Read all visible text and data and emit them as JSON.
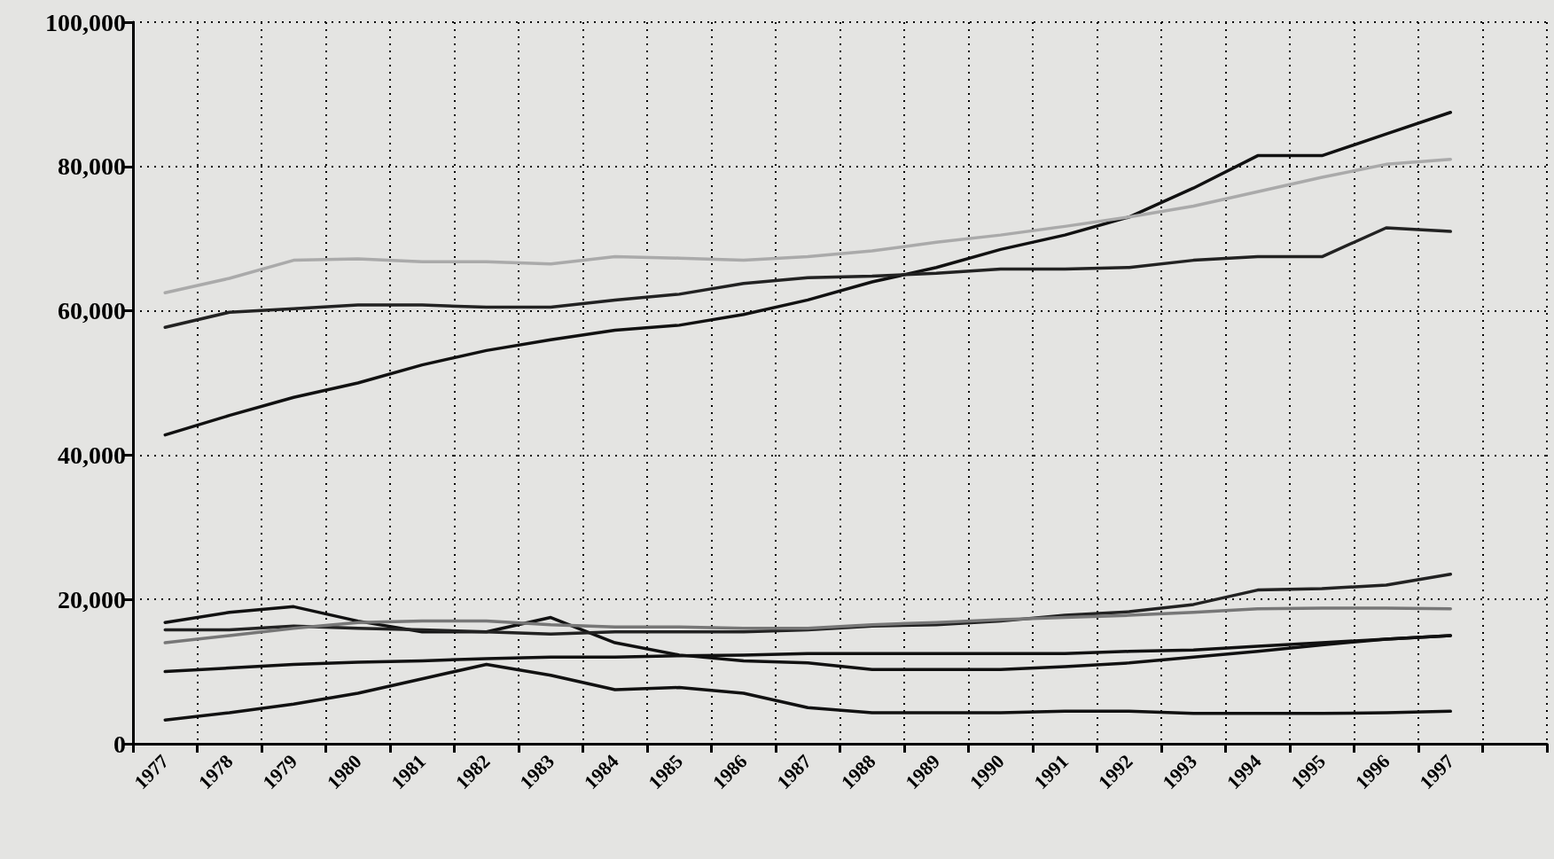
{
  "chart_data": {
    "type": "line",
    "categories": [
      "1977",
      "1978",
      "1979",
      "1980",
      "1981",
      "1982",
      "1983",
      "1984",
      "1985",
      "1986",
      "1987",
      "1988",
      "1989",
      "1990",
      "1991",
      "1992",
      "1993",
      "1994",
      "1995",
      "1996",
      "1997",
      null
    ],
    "series": [
      {
        "color": "#111111",
        "values": [
          42800,
          45500,
          48000,
          50000,
          52500,
          54500,
          56000,
          57300,
          58000,
          59500,
          61500,
          64000,
          66000,
          68500,
          70500,
          73000,
          77000,
          81500,
          81500,
          84500,
          87500,
          null
        ]
      },
      {
        "color": "#222222",
        "values": [
          57700,
          59800,
          60300,
          60800,
          60800,
          60500,
          60500,
          61500,
          62300,
          63800,
          64600,
          64800,
          65200,
          65800,
          65800,
          66000,
          67000,
          67500,
          67500,
          71500,
          71000,
          null
        ]
      },
      {
        "color": "#aaaaaa",
        "values": [
          62500,
          64500,
          67000,
          67200,
          66800,
          66800,
          66500,
          67500,
          67300,
          67000,
          67500,
          68300,
          69500,
          70500,
          71700,
          73000,
          74500,
          76500,
          78500,
          80300,
          81000,
          null
        ]
      },
      {
        "color": "#111111",
        "values": [
          16800,
          18200,
          19000,
          17000,
          15500,
          15500,
          17500,
          14000,
          12300,
          11500,
          11200,
          10300,
          10300,
          10300,
          10700,
          11200,
          12000,
          12800,
          13700,
          14500,
          15000,
          null
        ]
      },
      {
        "color": "#222222",
        "values": [
          15800,
          15800,
          16300,
          16000,
          15800,
          15500,
          15200,
          15500,
          15500,
          15500,
          15800,
          16300,
          16500,
          17000,
          17800,
          18300,
          19300,
          21300,
          21500,
          22000,
          23500,
          null
        ]
      },
      {
        "color": "#777777",
        "values": [
          14000,
          15000,
          16000,
          16800,
          17000,
          17000,
          16500,
          16200,
          16200,
          16000,
          16000,
          16500,
          16800,
          17200,
          17500,
          17800,
          18200,
          18700,
          18800,
          18800,
          18700,
          null
        ]
      },
      {
        "color": "#111111",
        "values": [
          10000,
          10500,
          11000,
          11300,
          11500,
          11800,
          12000,
          12000,
          12200,
          12300,
          12500,
          12500,
          12500,
          12500,
          12500,
          12800,
          13000,
          13500,
          14000,
          14500,
          15000,
          null
        ]
      },
      {
        "color": "#111111",
        "values": [
          3300,
          4300,
          5500,
          7000,
          9000,
          11000,
          9500,
          7500,
          7800,
          7000,
          5000,
          4300,
          4300,
          4300,
          4500,
          4500,
          4200,
          4200,
          4200,
          4300,
          4500,
          null
        ]
      }
    ],
    "ylim": [
      0,
      100000
    ],
    "yticks": [
      {
        "value": 0,
        "label": "0"
      },
      {
        "value": 20000,
        "label": "20,000"
      },
      {
        "value": 40000,
        "label": "40,000"
      },
      {
        "value": 60000,
        "label": "60,000"
      },
      {
        "value": 80000,
        "label": "80,000"
      },
      {
        "value": 100000,
        "label": "100,000"
      }
    ],
    "grid": true,
    "marker": "none",
    "line_style": "solid"
  }
}
